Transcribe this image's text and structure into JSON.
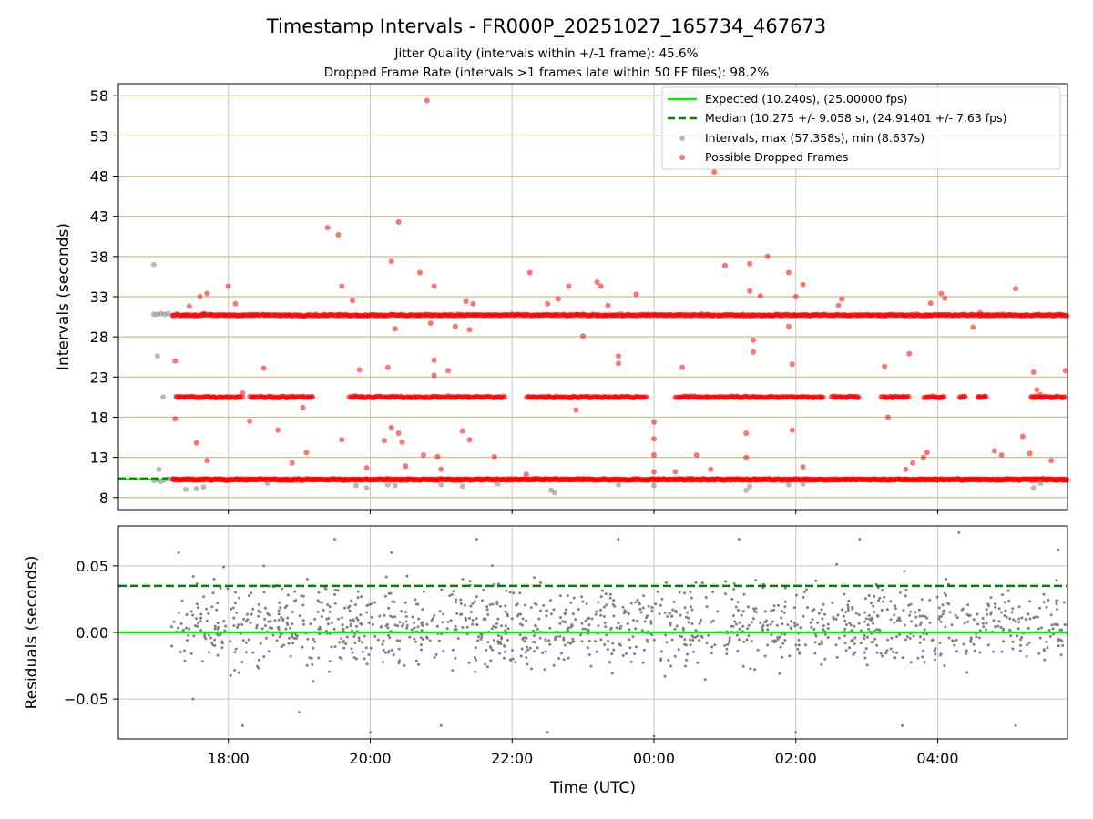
{
  "chart_data": [
    {
      "type": "scatter",
      "title": "Timestamp Intervals - FR000P_20251027_165734_467673",
      "subtitle_lines": [
        "Jitter Quality (intervals within +/-1 frame): 45.6%",
        "Dropped Frame Rate (intervals >1 frames late within 50 FF files): 98.2%"
      ],
      "ylabel": "Intervals (seconds)",
      "xlim_hours": [
        16.45,
        29.83
      ],
      "ylim": [
        6.5,
        59.5
      ],
      "yticks": [
        8,
        13,
        18,
        23,
        28,
        33,
        38,
        43,
        48,
        53,
        58
      ],
      "ytick_labels": [
        "8",
        "13",
        "18",
        "23",
        "28",
        "33",
        "38",
        "43",
        "48",
        "53",
        "58"
      ],
      "grid": "horizontal tan lines at y ticks, vertical grey lines at x ticks",
      "expected_interval": 10.24,
      "median_interval": 10.275,
      "legend_position": "top-right",
      "legend": [
        {
          "label": "Expected (10.240s), (25.00000 fps)",
          "style": "solid-line",
          "color": "#00ee00"
        },
        {
          "label": "Median (10.275 +/- 9.058 s), (24.91401 +/- 7.63 fps)",
          "style": "dashed-line",
          "color": "#008000"
        },
        {
          "label": "Intervals, max (57.358s), min (8.637s)",
          "style": "marker",
          "color": "#808080"
        },
        {
          "label": "Possible Dropped Frames",
          "style": "marker",
          "color": "#ff0000"
        }
      ],
      "series": [
        {
          "name": "Intervals",
          "color": "#808080",
          "points": [
            [
              16.95,
              37.0
            ],
            [
              17.0,
              25.6
            ],
            [
              17.02,
              11.5
            ],
            [
              17.08,
              20.5
            ],
            [
              17.15,
              10.3
            ],
            [
              16.95,
              30.8
            ],
            [
              17.0,
              30.8
            ],
            [
              17.05,
              30.9
            ],
            [
              17.1,
              30.8
            ],
            [
              17.15,
              30.9
            ],
            [
              16.95,
              10.1
            ],
            [
              17.0,
              10.2
            ],
            [
              17.05,
              10.0
            ],
            [
              17.1,
              10.2
            ],
            [
              17.4,
              9.0
            ],
            [
              17.55,
              9.1
            ],
            [
              17.65,
              9.3
            ],
            [
              18.55,
              9.8
            ],
            [
              19.8,
              9.5
            ],
            [
              19.95,
              9.2
            ],
            [
              20.25,
              9.6
            ],
            [
              20.35,
              9.5
            ],
            [
              21.0,
              9.6
            ],
            [
              21.3,
              9.4
            ],
            [
              21.8,
              9.7
            ],
            [
              22.55,
              8.9
            ],
            [
              22.6,
              8.6
            ],
            [
              23.5,
              9.6
            ],
            [
              24.0,
              9.5
            ],
            [
              25.3,
              8.9
            ],
            [
              25.35,
              9.4
            ],
            [
              25.9,
              9.6
            ],
            [
              26.1,
              9.7
            ],
            [
              29.35,
              9.2
            ],
            [
              29.45,
              9.8
            ]
          ]
        },
        {
          "name": "Possible Dropped Frames",
          "color": "#ff0000",
          "bands_from_to_hours": [
            [
              17.2,
              29.83,
              10.24
            ],
            [
              17.2,
              29.83,
              30.7
            ],
            [
              17.25,
              18.2,
              20.5
            ],
            [
              18.3,
              19.2,
              20.5
            ],
            [
              19.7,
              21.9,
              20.5
            ],
            [
              22.2,
              23.9,
              20.5
            ],
            [
              24.3,
              26.4,
              20.5
            ],
            [
              26.5,
              26.9,
              20.5
            ],
            [
              27.2,
              27.6,
              20.5
            ],
            [
              27.8,
              28.1,
              20.5
            ],
            [
              28.3,
              28.4,
              20.5
            ],
            [
              28.55,
              28.7,
              20.5
            ],
            [
              29.3,
              29.8,
              20.5
            ]
          ],
          "points": [
            [
              17.25,
              25.0
            ],
            [
              17.25,
              17.8
            ],
            [
              17.45,
              31.8
            ],
            [
              17.6,
              33.0
            ],
            [
              17.7,
              33.4
            ],
            [
              17.65,
              30.9
            ],
            [
              17.55,
              14.8
            ],
            [
              17.7,
              12.6
            ],
            [
              17.75,
              20.5
            ],
            [
              18.0,
              34.3
            ],
            [
              18.1,
              32.1
            ],
            [
              18.2,
              21.0
            ],
            [
              18.3,
              17.5
            ],
            [
              18.5,
              24.1
            ],
            [
              18.7,
              16.4
            ],
            [
              18.9,
              12.3
            ],
            [
              19.1,
              13.6
            ],
            [
              19.05,
              19.2
            ],
            [
              19.4,
              41.6
            ],
            [
              19.55,
              40.7
            ],
            [
              19.6,
              34.3
            ],
            [
              19.6,
              15.2
            ],
            [
              19.75,
              32.5
            ],
            [
              19.85,
              23.9
            ],
            [
              19.95,
              11.7
            ],
            [
              20.2,
              15.1
            ],
            [
              20.25,
              24.2
            ],
            [
              20.3,
              37.4
            ],
            [
              20.35,
              29.0
            ],
            [
              20.3,
              16.7
            ],
            [
              20.4,
              42.3
            ],
            [
              20.4,
              16.0
            ],
            [
              20.45,
              14.9
            ],
            [
              20.5,
              11.9
            ],
            [
              20.7,
              36.0
            ],
            [
              20.75,
              13.3
            ],
            [
              20.8,
              57.4
            ],
            [
              20.85,
              29.7
            ],
            [
              20.9,
              34.3
            ],
            [
              20.9,
              25.1
            ],
            [
              20.9,
              23.2
            ],
            [
              20.95,
              13.1
            ],
            [
              21.0,
              11.5
            ],
            [
              21.1,
              23.8
            ],
            [
              21.2,
              29.3
            ],
            [
              21.3,
              16.3
            ],
            [
              21.35,
              32.4
            ],
            [
              21.4,
              15.2
            ],
            [
              21.4,
              28.9
            ],
            [
              21.45,
              32.1
            ],
            [
              21.75,
              13.1
            ],
            [
              22.2,
              10.9
            ],
            [
              22.25,
              36.0
            ],
            [
              22.5,
              32.1
            ],
            [
              22.65,
              32.7
            ],
            [
              22.8,
              34.3
            ],
            [
              22.85,
              20.5
            ],
            [
              22.9,
              18.9
            ],
            [
              23.0,
              28.1
            ],
            [
              23.2,
              34.8
            ],
            [
              23.25,
              34.3
            ],
            [
              23.35,
              31.9
            ],
            [
              23.45,
              20.5
            ],
            [
              23.5,
              24.7
            ],
            [
              23.5,
              25.6
            ],
            [
              23.75,
              33.3
            ],
            [
              24.0,
              17.4
            ],
            [
              24.0,
              15.3
            ],
            [
              24.0,
              13.3
            ],
            [
              24.0,
              11.2
            ],
            [
              24.3,
              11.2
            ],
            [
              24.4,
              24.2
            ],
            [
              24.6,
              13.3
            ],
            [
              24.8,
              11.5
            ],
            [
              24.85,
              48.5
            ],
            [
              25.0,
              36.9
            ],
            [
              25.3,
              13.0
            ],
            [
              25.3,
              16.0
            ],
            [
              25.35,
              33.7
            ],
            [
              25.35,
              37.1
            ],
            [
              25.4,
              26.1
            ],
            [
              25.4,
              27.6
            ],
            [
              25.5,
              33.1
            ],
            [
              25.6,
              38.0
            ],
            [
              25.9,
              36.0
            ],
            [
              25.95,
              24.6
            ],
            [
              25.95,
              16.4
            ],
            [
              25.9,
              29.3
            ],
            [
              26.0,
              33.0
            ],
            [
              26.1,
              34.5
            ],
            [
              26.1,
              11.8
            ],
            [
              26.6,
              31.9
            ],
            [
              26.65,
              32.7
            ],
            [
              27.25,
              24.3
            ],
            [
              27.3,
              18.0
            ],
            [
              27.6,
              25.9
            ],
            [
              27.55,
              11.5
            ],
            [
              27.65,
              12.3
            ],
            [
              27.8,
              13.0
            ],
            [
              27.85,
              13.6
            ],
            [
              27.9,
              32.2
            ],
            [
              28.05,
              33.4
            ],
            [
              28.1,
              32.8
            ],
            [
              28.5,
              29.2
            ],
            [
              28.6,
              31.0
            ],
            [
              28.8,
              13.8
            ],
            [
              28.9,
              13.3
            ],
            [
              29.1,
              34.0
            ],
            [
              29.2,
              15.6
            ],
            [
              29.3,
              13.5
            ],
            [
              29.4,
              21.4
            ],
            [
              29.45,
              20.8
            ],
            [
              29.35,
              23.6
            ],
            [
              29.6,
              12.6
            ],
            [
              29.8,
              23.8
            ]
          ]
        }
      ]
    },
    {
      "type": "scatter",
      "ylabel": "Residuals (seconds)",
      "xlabel": "Time (UTC)",
      "xlim_hours": [
        16.45,
        29.83
      ],
      "ylim": [
        -0.08,
        0.08
      ],
      "yticks": [
        -0.05,
        0.0,
        0.05
      ],
      "ytick_labels": [
        "−0.05",
        "0.00",
        "0.05"
      ],
      "xticks_hours": [
        18,
        20,
        22,
        24,
        26,
        28
      ],
      "xtick_labels": [
        "18:00",
        "20:00",
        "22:00",
        "00:00",
        "02:00",
        "04:00"
      ],
      "grid": "vertical grey lines at x ticks, horizontal grey lines at y ticks",
      "reference_lines": [
        {
          "name": "Expected",
          "value": 0.0,
          "style": "solid",
          "color": "#00ee00"
        },
        {
          "name": "Median",
          "value": 0.035,
          "style": "dashed",
          "color": "#008000"
        }
      ],
      "series": [
        {
          "name": "Residuals",
          "color": "#808080",
          "x_range_hours": [
            17.2,
            29.83
          ],
          "point_count": 1300,
          "center": 0.005,
          "spread": 0.03,
          "sample_points": [
            [
              17.3,
              0.06
            ],
            [
              17.5,
              -0.05
            ],
            [
              17.8,
              0.04
            ],
            [
              18.2,
              -0.07
            ],
            [
              18.5,
              0.05
            ],
            [
              19.0,
              -0.06
            ],
            [
              19.5,
              0.07
            ],
            [
              20.0,
              -0.075
            ],
            [
              20.3,
              0.06
            ],
            [
              21.0,
              -0.07
            ],
            [
              21.5,
              0.07
            ],
            [
              22.5,
              -0.075
            ],
            [
              23.5,
              0.07
            ],
            [
              24.0,
              -0.078
            ],
            [
              25.2,
              0.07
            ],
            [
              26.0,
              -0.075
            ],
            [
              26.9,
              0.07
            ],
            [
              27.5,
              -0.07
            ],
            [
              28.3,
              0.075
            ],
            [
              29.1,
              -0.07
            ],
            [
              29.7,
              0.062
            ]
          ]
        }
      ]
    }
  ]
}
